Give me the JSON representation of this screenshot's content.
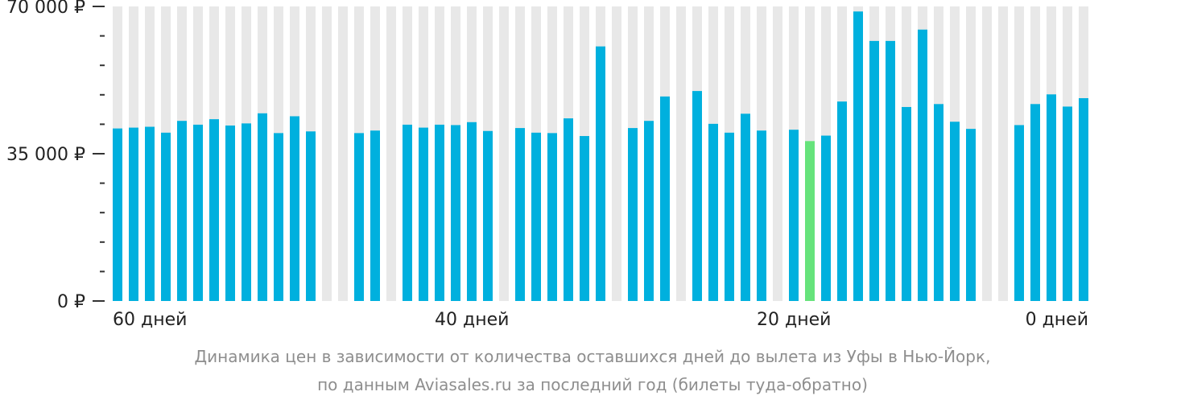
{
  "chart_data": {
    "type": "bar",
    "categories": [
      "60 дней",
      "59 дней",
      "58 дней",
      "57 дней",
      "56 дней",
      "55 дней",
      "54 дней",
      "53 дней",
      "52 дней",
      "51 дней",
      "50 дней",
      "49 дней",
      "48 дней",
      "47 дней",
      "46 дней",
      "45 дней",
      "44 дней",
      "43 дней",
      "42 дней",
      "41 дней",
      "40 дней",
      "39 дней",
      "38 дней",
      "37 дней",
      "36 дней",
      "35 дней",
      "34 дней",
      "33 дней",
      "32 дней",
      "31 дней",
      "30 дней",
      "29 дней",
      "28 дней",
      "27 дней",
      "26 дней",
      "25 дней",
      "24 дней",
      "23 дней",
      "22 дней",
      "21 дней",
      "20 дней",
      "19 дней",
      "18 дней",
      "17 дней",
      "16 дней",
      "15 дней",
      "14 дней",
      "13 дней",
      "12 дней",
      "11 дней",
      "10 дней",
      "9 дней",
      "8 дней",
      "7 дней",
      "6 дней",
      "5 дней",
      "4 дней",
      "3 дней",
      "2 дней",
      "1 дней",
      "0 дней"
    ],
    "values": [
      41000,
      41200,
      41400,
      40000,
      42800,
      41900,
      43200,
      41700,
      42200,
      44600,
      39900,
      43900,
      40300,
      null,
      null,
      39900,
      40500,
      null,
      41900,
      41200,
      41900,
      41800,
      42500,
      40400,
      null,
      41100,
      40000,
      39900,
      43400,
      39200,
      60500,
      null,
      41100,
      42800,
      48600,
      null,
      49900,
      42100,
      40000,
      44500,
      40500,
      null,
      40700,
      38000,
      39300,
      47400,
      68800,
      61800,
      61800,
      46100,
      64500,
      46800,
      42600,
      40900,
      null,
      null,
      41800,
      46800,
      49100,
      46200,
      48200
    ],
    "highlight_index": 43,
    "ylim": [
      0,
      70000
    ],
    "yticks": [
      0,
      35000,
      70000
    ],
    "ytick_labels": [
      "0 ₽",
      "35 000 ₽",
      "70 000 ₽"
    ],
    "xtick_labels": [
      "60 дней",
      "40 дней",
      "20 дней",
      "0 дней"
    ],
    "title": "",
    "xlabel": "",
    "ylabel": "",
    "grid": false,
    "colors": {
      "bar": "#00b0de",
      "highlight": "#66e37b",
      "background_band": "#e8e8e8",
      "axis_text": "#222222",
      "caption_text": "#8e8e8e"
    }
  },
  "caption": {
    "line1": "Динамика цен в зависимости от количества оставшихся дней до вылета из Уфы в Нью-Йорк,",
    "line2": "по данным Aviasales.ru за последний год (билеты туда-обратно)"
  }
}
